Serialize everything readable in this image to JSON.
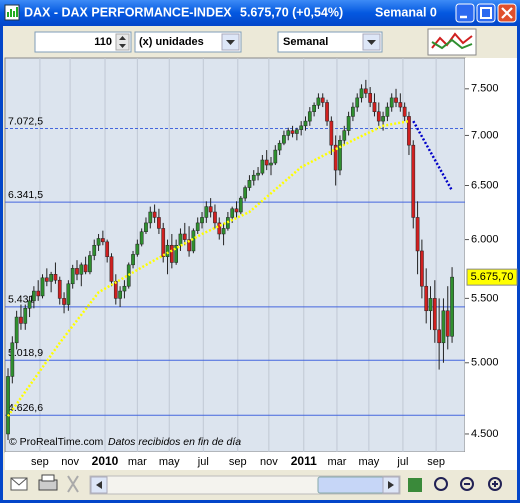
{
  "window": {
    "title": "DAX - DAX PERFORMANCE-INDEX",
    "quote": "5.675,70 (+0,54%)",
    "period": "Semanal  0"
  },
  "toolbar": {
    "units_count": 110,
    "units": "(x) unidades",
    "period": "Semanal"
  },
  "chart_data": {
    "type": "candlestick",
    "log_scale": true,
    "grid": true,
    "up_color": "#2f8f2f",
    "down_color": "#d02020",
    "ylim": [
      4460,
      7850
    ],
    "xlim": [
      -0.7,
      106
    ],
    "yticks": [
      {
        "value": 4500,
        "label": "4.500"
      },
      {
        "value": 5000,
        "label": "5.000"
      },
      {
        "value": 5500,
        "label": "5.500"
      },
      {
        "value": 6000,
        "label": "6.000"
      },
      {
        "value": 6500,
        "label": "6.500"
      },
      {
        "value": 7000,
        "label": "7.000"
      },
      {
        "value": 7500,
        "label": "7.500"
      }
    ],
    "xticks": [
      {
        "value": 7.4,
        "label": "sep"
      },
      {
        "value": 14.4,
        "label": "nov"
      },
      {
        "value": 22.5,
        "label": "2010"
      },
      {
        "value": 30,
        "label": "mar"
      },
      {
        "value": 37.4,
        "label": "may"
      },
      {
        "value": 45.3,
        "label": "jul"
      },
      {
        "value": 53.3,
        "label": "sep"
      },
      {
        "value": 60.5,
        "label": "nov"
      },
      {
        "value": 68.6,
        "label": "2011"
      },
      {
        "value": 76.3,
        "label": "mar"
      },
      {
        "value": 83.7,
        "label": "may"
      },
      {
        "value": 91.6,
        "label": "jul"
      },
      {
        "value": 99.3,
        "label": "sep"
      }
    ],
    "ohlc": [
      [
        4500,
        4960,
        4460,
        4900
      ],
      [
        4900,
        5200,
        4850,
        5150
      ],
      [
        5150,
        5400,
        5100,
        5350
      ],
      [
        5350,
        5450,
        5250,
        5300
      ],
      [
        5300,
        5450,
        5250,
        5420
      ],
      [
        5420,
        5520,
        5350,
        5480
      ],
      [
        5480,
        5600,
        5420,
        5560
      ],
      [
        5560,
        5650,
        5480,
        5520
      ],
      [
        5520,
        5700,
        5500,
        5670
      ],
      [
        5670,
        5750,
        5600,
        5640
      ],
      [
        5640,
        5720,
        5550,
        5700
      ],
      [
        5700,
        5800,
        5620,
        5650
      ],
      [
        5650,
        5680,
        5450,
        5500
      ],
      [
        5500,
        5550,
        5380,
        5450
      ],
      [
        5450,
        5650,
        5400,
        5620
      ],
      [
        5620,
        5780,
        5580,
        5750
      ],
      [
        5750,
        5820,
        5650,
        5700
      ],
      [
        5700,
        5800,
        5600,
        5780
      ],
      [
        5780,
        5850,
        5700,
        5720
      ],
      [
        5720,
        5900,
        5700,
        5860
      ],
      [
        5860,
        6000,
        5820,
        5950
      ],
      [
        5950,
        6050,
        5900,
        6010
      ],
      [
        6010,
        6080,
        5950,
        5980
      ],
      [
        5980,
        6000,
        5800,
        5850
      ],
      [
        5850,
        5880,
        5600,
        5640
      ],
      [
        5640,
        5700,
        5450,
        5500
      ],
      [
        5500,
        5600,
        5430,
        5560
      ],
      [
        5560,
        5650,
        5500,
        5600
      ],
      [
        5600,
        5800,
        5580,
        5780
      ],
      [
        5780,
        5900,
        5750,
        5870
      ],
      [
        5870,
        6000,
        5850,
        5960
      ],
      [
        5960,
        6100,
        5940,
        6070
      ],
      [
        6070,
        6200,
        6050,
        6150
      ],
      [
        6150,
        6300,
        6100,
        6250
      ],
      [
        6250,
        6320,
        6150,
        6200
      ],
      [
        6200,
        6280,
        6050,
        6100
      ],
      [
        6100,
        6150,
        5800,
        5850
      ],
      [
        5850,
        6000,
        5700,
        5950
      ],
      [
        5950,
        6050,
        5750,
        5800
      ],
      [
        5800,
        6000,
        5780,
        5950
      ],
      [
        5950,
        6100,
        5900,
        6050
      ],
      [
        6050,
        6150,
        5950,
        6000
      ],
      [
        6000,
        6120,
        5850,
        5900
      ],
      [
        5900,
        6100,
        5880,
        6080
      ],
      [
        6080,
        6200,
        6050,
        6150
      ],
      [
        6150,
        6250,
        6100,
        6200
      ],
      [
        6200,
        6350,
        6150,
        6300
      ],
      [
        6300,
        6380,
        6200,
        6250
      ],
      [
        6250,
        6320,
        6100,
        6150
      ],
      [
        6150,
        6200,
        6000,
        6050
      ],
      [
        6050,
        6150,
        5950,
        6100
      ],
      [
        6100,
        6250,
        6080,
        6200
      ],
      [
        6200,
        6300,
        6150,
        6280
      ],
      [
        6280,
        6350,
        6200,
        6250
      ],
      [
        6250,
        6400,
        6230,
        6380
      ],
      [
        6380,
        6500,
        6350,
        6480
      ],
      [
        6480,
        6600,
        6450,
        6550
      ],
      [
        6550,
        6650,
        6500,
        6600
      ],
      [
        6600,
        6680,
        6550,
        6620
      ],
      [
        6620,
        6800,
        6600,
        6750
      ],
      [
        6750,
        6850,
        6650,
        6700
      ],
      [
        6700,
        6780,
        6600,
        6720
      ],
      [
        6720,
        6900,
        6700,
        6850
      ],
      [
        6850,
        6950,
        6800,
        6920
      ],
      [
        6920,
        7050,
        6900,
        7000
      ],
      [
        7000,
        7080,
        6950,
        7050
      ],
      [
        7050,
        7100,
        6980,
        7020
      ],
      [
        7020,
        7080,
        6950,
        7060
      ],
      [
        7060,
        7150,
        7000,
        7100
      ],
      [
        7100,
        7200,
        7050,
        7150
      ],
      [
        7150,
        7300,
        7100,
        7250
      ],
      [
        7250,
        7350,
        7200,
        7320
      ],
      [
        7320,
        7450,
        7280,
        7400
      ],
      [
        7400,
        7450,
        7300,
        7350
      ],
      [
        7350,
        7380,
        7100,
        7150
      ],
      [
        7150,
        7200,
        6800,
        6900
      ],
      [
        6900,
        7000,
        6500,
        6650
      ],
      [
        6650,
        7000,
        6600,
        6950
      ],
      [
        6950,
        7100,
        6900,
        7050
      ],
      [
        7050,
        7250,
        7000,
        7200
      ],
      [
        7200,
        7350,
        7150,
        7300
      ],
      [
        7300,
        7450,
        7250,
        7400
      ],
      [
        7400,
        7550,
        7350,
        7500
      ],
      [
        7500,
        7600,
        7400,
        7450
      ],
      [
        7450,
        7520,
        7300,
        7350
      ],
      [
        7350,
        7450,
        7200,
        7250
      ],
      [
        7250,
        7350,
        7100,
        7150
      ],
      [
        7150,
        7250,
        7050,
        7200
      ],
      [
        7200,
        7350,
        7150,
        7300
      ],
      [
        7300,
        7450,
        7250,
        7400
      ],
      [
        7400,
        7500,
        7300,
        7350
      ],
      [
        7350,
        7450,
        7250,
        7300
      ],
      [
        7300,
        7350,
        7150,
        7200
      ],
      [
        7200,
        7250,
        6800,
        6900
      ],
      [
        6900,
        6950,
        6100,
        6200
      ],
      [
        6200,
        6350,
        5700,
        5900
      ],
      [
        5900,
        6000,
        5500,
        5600
      ],
      [
        5600,
        5750,
        5300,
        5400
      ],
      [
        5400,
        5600,
        5250,
        5500
      ],
      [
        5500,
        5650,
        5150,
        5250
      ],
      [
        5250,
        5500,
        4950,
        5150
      ],
      [
        5150,
        5500,
        5000,
        5400
      ],
      [
        5400,
        5600,
        5100,
        5200
      ],
      [
        5200,
        5760,
        5150,
        5675.7
      ]
    ],
    "overlays": [
      {
        "color": "#ffff00",
        "x": [
          0,
          12,
          21,
          33,
          45,
          56,
          68,
          80,
          87,
          93
        ],
        "values": [
          4620,
          5150,
          5550,
          5800,
          6050,
          6250,
          6680,
          6950,
          7100,
          7150
        ]
      },
      {
        "color": "#0000c8",
        "x": [
          94,
          103
        ],
        "values": [
          7150,
          6450
        ]
      }
    ],
    "levels": [
      {
        "value": 7072.5,
        "label": "7.072,5",
        "style": "dashed"
      },
      {
        "value": 6341.5,
        "label": "6.341,5",
        "style": "solid"
      },
      {
        "value": 5431,
        "label": "5.431",
        "style": "solid"
      },
      {
        "value": 5018.9,
        "label": "5.018,9",
        "style": "solid"
      },
      {
        "value": 4626.6,
        "label": "4.626,6",
        "style": "solid"
      }
    ],
    "price_label": {
      "value": 5675.7,
      "label": "5.675,70"
    },
    "watermark": "© ProRealTime.com",
    "note": "Datos recibidos en fin de día"
  }
}
